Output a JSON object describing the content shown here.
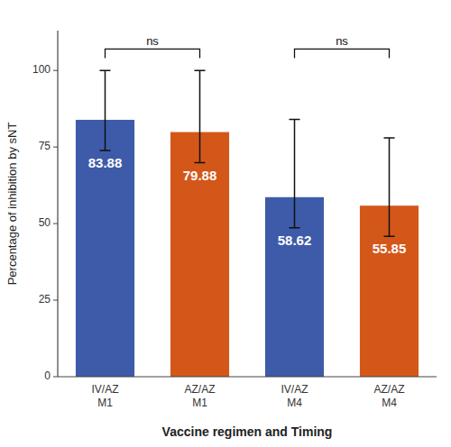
{
  "chart_data": {
    "type": "bar",
    "categories": [
      "IV/AZ\nM1",
      "AZ/AZ\nM1",
      "IV/AZ\nM4",
      "AZ/AZ\nM4"
    ],
    "values": [
      83.88,
      79.88,
      58.62,
      55.85
    ],
    "errors_upper": [
      16.12,
      20.12,
      25.38,
      22.15
    ],
    "errors_lower": [
      10.0,
      10.0,
      10.0,
      10.0
    ],
    "colors": [
      "#3D5BA8",
      "#D4571A",
      "#3D5BA8",
      "#D4571A"
    ],
    "ylabel": "Percentage of inhibition by sNT",
    "xlabel": "Vaccine regimen and Timing",
    "ylim": [
      0,
      113
    ],
    "yticks": [
      0,
      25,
      50,
      75,
      100
    ],
    "grid": false,
    "data_labels": true,
    "annotations": [
      {
        "between": [
          "IV/AZ\nM1",
          "AZ/AZ\nM1"
        ],
        "y": 107,
        "label": "ns"
      },
      {
        "between": [
          "IV/AZ\nM4",
          "AZ/AZ\nM4"
        ],
        "y": 107,
        "label": "ns"
      }
    ]
  }
}
